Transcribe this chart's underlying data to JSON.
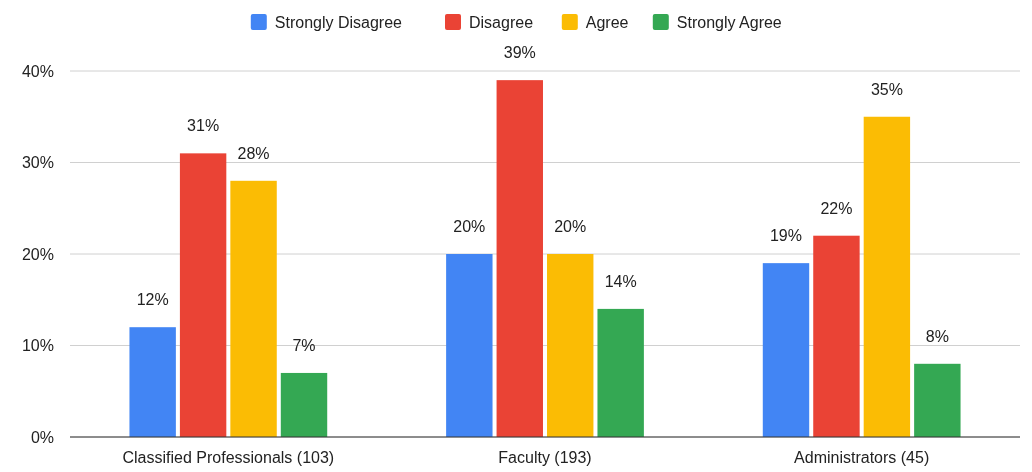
{
  "chart_data": {
    "type": "bar",
    "categories": [
      "Classified Professionals (103)",
      "Faculty (193)",
      "Administrators (45)"
    ],
    "series": [
      {
        "name": "Strongly Disagree",
        "color": "#4285f4",
        "values": [
          12,
          20,
          19
        ],
        "value_labels": [
          "12%",
          "20%",
          "19%"
        ]
      },
      {
        "name": "Disagree",
        "color": "#ea4335",
        "values": [
          31,
          39,
          22
        ],
        "value_labels": [
          "31%",
          "39%",
          "22%"
        ]
      },
      {
        "name": "Agree",
        "color": "#fbbc04",
        "values": [
          28,
          20,
          35
        ],
        "value_labels": [
          "28%",
          "20%",
          "35%"
        ]
      },
      {
        "name": "Strongly Agree",
        "color": "#34a853",
        "values": [
          7,
          14,
          8
        ],
        "value_labels": [
          "7%",
          "14%",
          "8%"
        ]
      }
    ],
    "ylim": [
      0,
      40
    ],
    "yticks": [
      {
        "value": 0,
        "label": "0%"
      },
      {
        "value": 10,
        "label": "10%"
      },
      {
        "value": 20,
        "label": "20%"
      },
      {
        "value": 30,
        "label": "30%"
      },
      {
        "value": 40,
        "label": "40%"
      }
    ],
    "grid": "y",
    "legend": "top"
  }
}
